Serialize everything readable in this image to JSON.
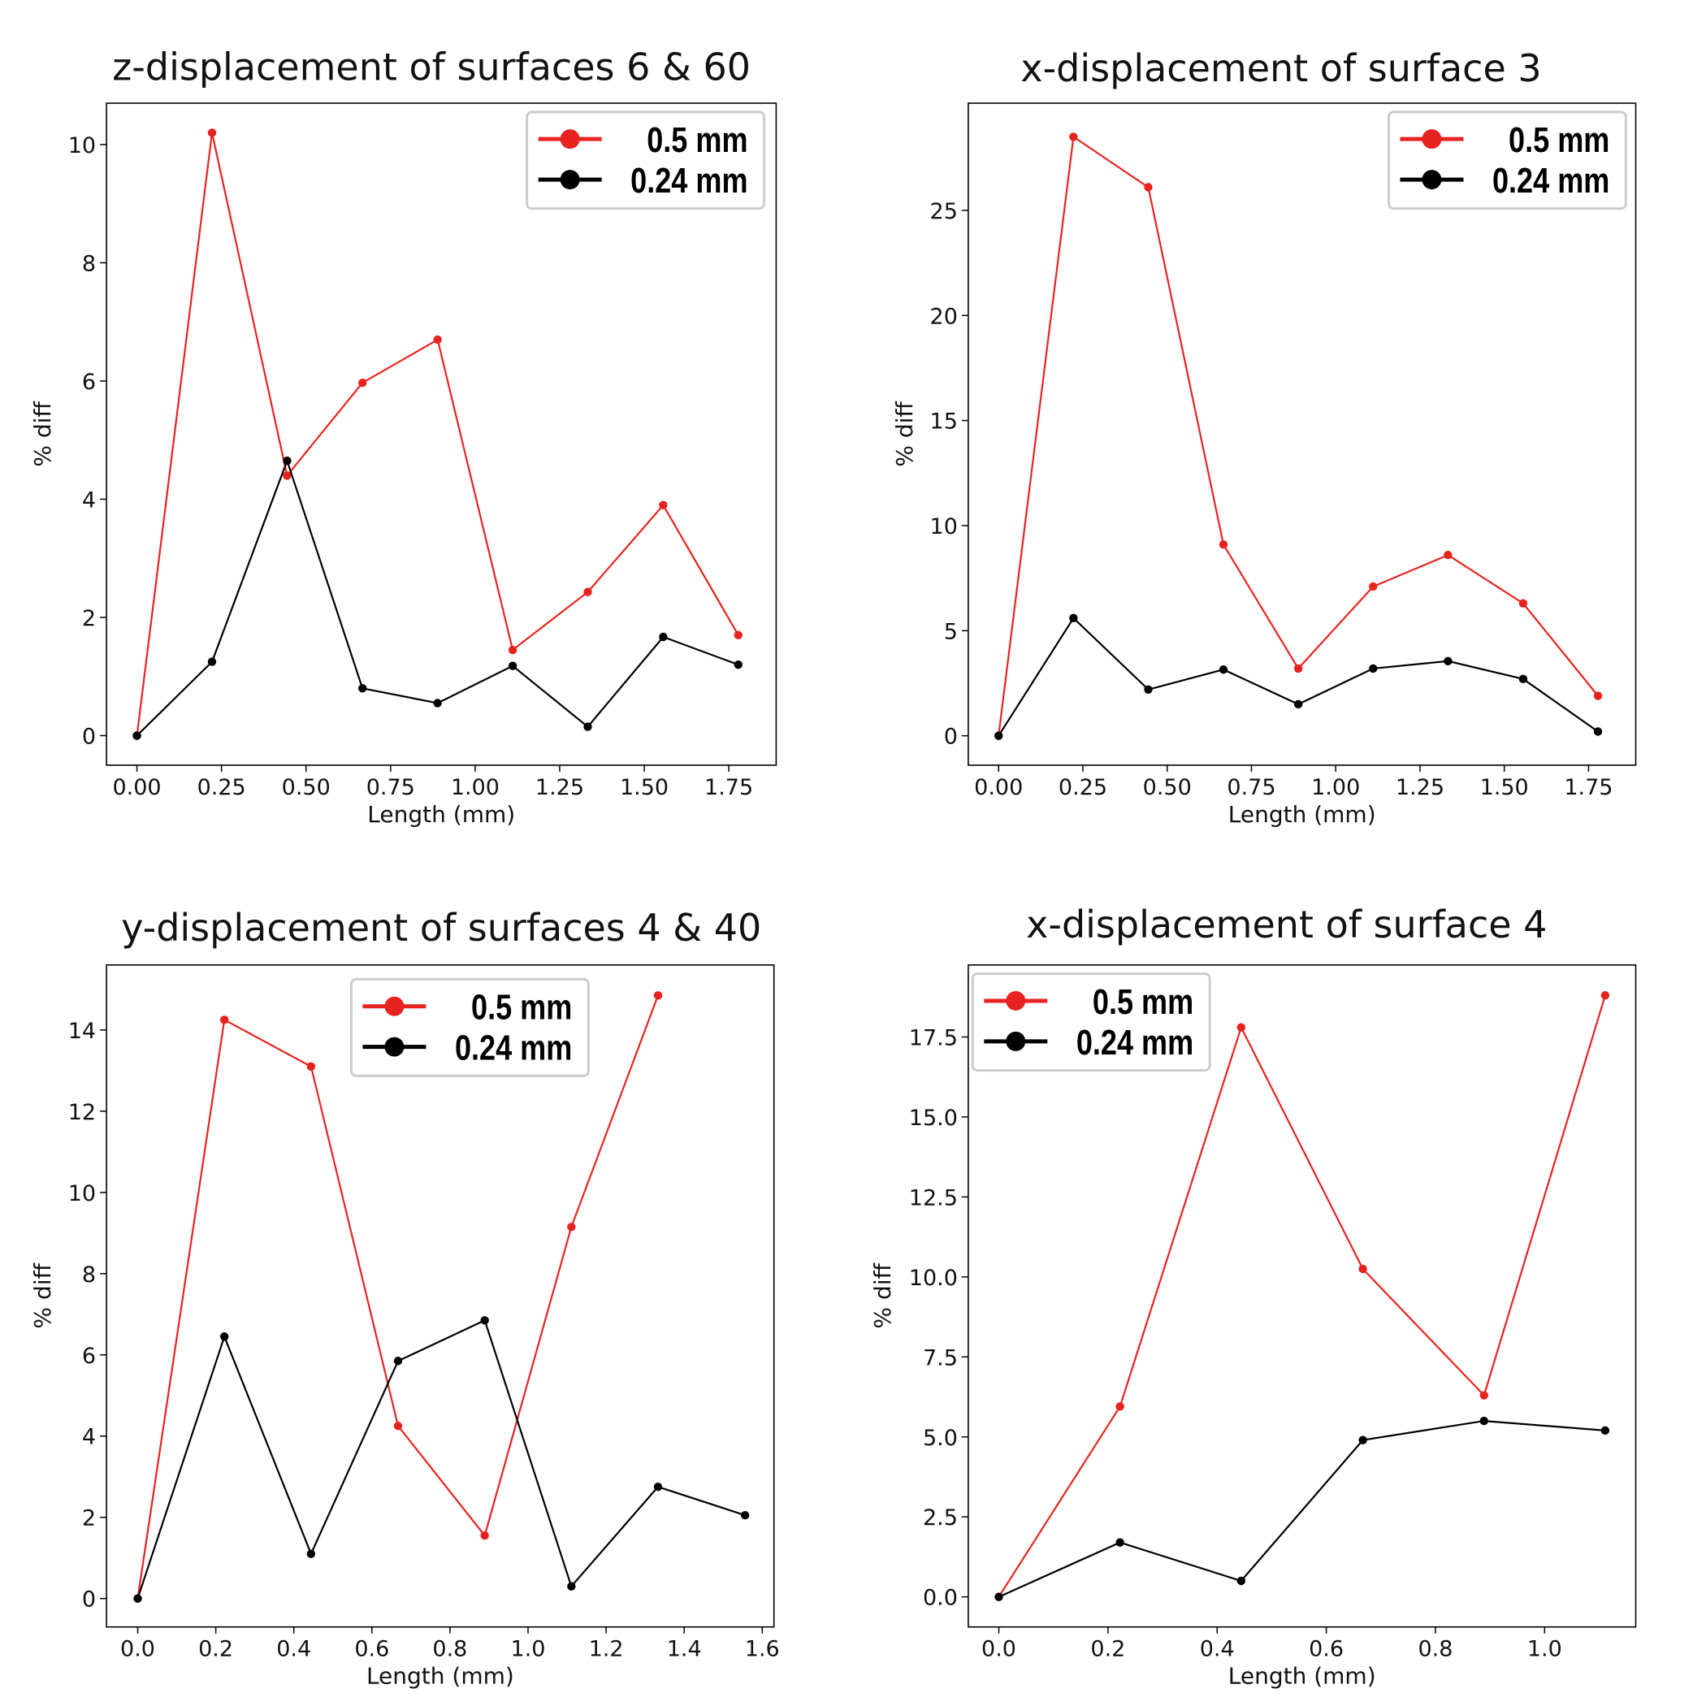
{
  "chart_data": [
    {
      "type": "line",
      "title": "z-displacement of surfaces 6 & 60",
      "xlabel": "Length (mm)",
      "ylabel": "% diff",
      "xlim": [
        -0.09,
        1.89
      ],
      "ylim": [
        -0.5,
        10.7
      ],
      "xticks": [
        "0.00",
        "0.25",
        "0.50",
        "0.75",
        "1.00",
        "1.25",
        "1.50",
        "1.75"
      ],
      "yticks": [
        "0",
        "2",
        "4",
        "6",
        "8",
        "10"
      ],
      "legend_position": "top-right",
      "grid": false,
      "series": [
        {
          "name": "0.5 mm",
          "color": "#e8231f",
          "x": [
            0,
            0.222,
            0.444,
            0.667,
            0.889,
            1.111,
            1.333,
            1.556,
            1.778
          ],
          "y": [
            0,
            10.2,
            4.4,
            5.97,
            6.7,
            1.45,
            2.43,
            3.9,
            1.7
          ]
        },
        {
          "name": "0.24 mm",
          "color": "#000000",
          "x": [
            0,
            0.222,
            0.444,
            0.667,
            0.889,
            1.111,
            1.333,
            1.556,
            1.778
          ],
          "y": [
            0,
            1.25,
            4.65,
            0.8,
            0.55,
            1.18,
            0.15,
            1.67,
            1.2
          ]
        }
      ]
    },
    {
      "type": "line",
      "title": "x-displacement of surface 3",
      "xlabel": "Length (mm)",
      "ylabel": "% diff",
      "xlim": [
        -0.09,
        1.89
      ],
      "ylim": [
        -1.4,
        30.1
      ],
      "xticks": [
        "0.00",
        "0.25",
        "0.50",
        "0.75",
        "1.00",
        "1.25",
        "1.50",
        "1.75"
      ],
      "yticks": [
        "0",
        "5",
        "10",
        "15",
        "20",
        "25"
      ],
      "legend_position": "top-right",
      "grid": false,
      "series": [
        {
          "name": "0.5 mm",
          "color": "#e8231f",
          "x": [
            0,
            0.222,
            0.444,
            0.667,
            0.889,
            1.111,
            1.333,
            1.556,
            1.778
          ],
          "y": [
            0,
            28.5,
            26.1,
            9.1,
            3.2,
            7.1,
            8.6,
            6.3,
            1.9
          ]
        },
        {
          "name": "0.24 mm",
          "color": "#000000",
          "x": [
            0,
            0.222,
            0.444,
            0.667,
            0.889,
            1.111,
            1.333,
            1.556,
            1.778
          ],
          "y": [
            0,
            5.6,
            2.2,
            3.15,
            1.5,
            3.2,
            3.55,
            2.7,
            0.2
          ]
        }
      ]
    },
    {
      "type": "line",
      "title": "y-displacement of surfaces 4 & 40",
      "xlabel": "Length (mm)",
      "ylabel": "% diff",
      "xlim": [
        -0.08,
        1.63
      ],
      "ylim": [
        -0.7,
        15.6
      ],
      "xticks": [
        "0.0",
        "0.2",
        "0.4",
        "0.6",
        "0.8",
        "1.0",
        "1.2",
        "1.4",
        "1.6"
      ],
      "yticks": [
        "0",
        "2",
        "4",
        "6",
        "8",
        "10",
        "12",
        "14"
      ],
      "legend_position": "top-center",
      "grid": false,
      "series": [
        {
          "name": "0.5 mm",
          "color": "#e8231f",
          "x": [
            0,
            0.222,
            0.444,
            0.667,
            0.889,
            1.111,
            1.333
          ],
          "y": [
            0,
            14.25,
            13.1,
            4.25,
            1.55,
            9.15,
            14.85
          ]
        },
        {
          "name": "0.24 mm",
          "color": "#000000",
          "x": [
            0,
            0.222,
            0.444,
            0.667,
            0.889,
            1.111,
            1.333,
            1.556
          ],
          "y": [
            0,
            6.45,
            1.1,
            5.85,
            6.85,
            0.3,
            2.75,
            2.05
          ]
        }
      ]
    },
    {
      "type": "line",
      "title": "x-displacement of surface 4",
      "xlabel": "Length (mm)",
      "ylabel": "% diff",
      "xlim": [
        -0.056,
        1.167
      ],
      "ylim": [
        -0.94,
        19.75
      ],
      "xticks": [
        "0.0",
        "0.2",
        "0.4",
        "0.6",
        "0.8",
        "1.0"
      ],
      "yticks": [
        "0.0",
        "2.5",
        "5.0",
        "7.5",
        "10.0",
        "12.5",
        "15.0",
        "17.5"
      ],
      "legend_position": "top-left",
      "grid": false,
      "series": [
        {
          "name": "0.5 mm",
          "color": "#e8231f",
          "x": [
            0,
            0.222,
            0.444,
            0.667,
            0.889,
            1.111
          ],
          "y": [
            0,
            5.95,
            17.8,
            10.25,
            6.3,
            18.8
          ]
        },
        {
          "name": "0.24 mm",
          "color": "#000000",
          "x": [
            0,
            0.222,
            0.444,
            0.667,
            0.889,
            1.111
          ],
          "y": [
            0,
            1.7,
            0.5,
            4.9,
            5.5,
            5.2
          ]
        }
      ]
    }
  ]
}
